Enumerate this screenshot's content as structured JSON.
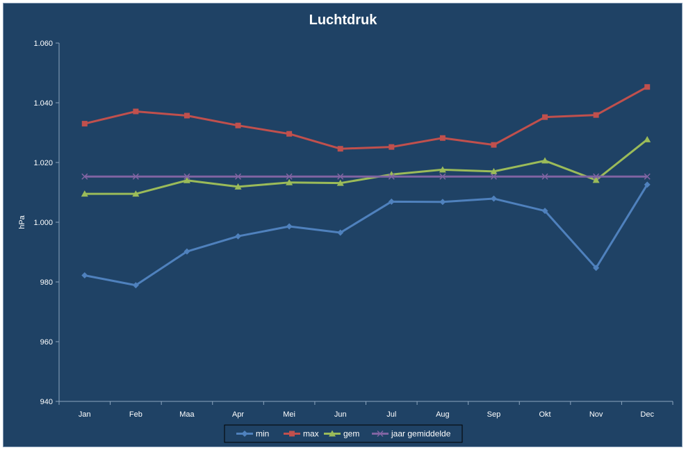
{
  "chart_data": {
    "type": "line",
    "title": "Luchtdruk",
    "xlabel": "",
    "ylabel": "hPa",
    "ylim": [
      940,
      1060
    ],
    "yticks": [
      940,
      960,
      980,
      1000,
      1020,
      1040,
      1060
    ],
    "ytick_labels": [
      "940",
      "960",
      "980",
      "1.000",
      "1.020",
      "1.040",
      "1.060"
    ],
    "grid": false,
    "legend_position": "bottom",
    "categories": [
      "Jan",
      "Feb",
      "Maa",
      "Apr",
      "Mei",
      "Jun",
      "Jul",
      "Aug",
      "Sep",
      "Okt",
      "Nov",
      "Dec"
    ],
    "series": [
      {
        "name": "min",
        "color": "#4f81bd",
        "marker": "diamond",
        "values": [
          982.2,
          978.9,
          990.2,
          995.3,
          998.6,
          996.5,
          1006.9,
          1006.8,
          1007.9,
          1003.8,
          984.7,
          1012.6
        ]
      },
      {
        "name": "max",
        "color": "#c0504d",
        "marker": "square",
        "values": [
          1033.0,
          1037.1,
          1035.7,
          1032.4,
          1029.6,
          1024.6,
          1025.2,
          1028.2,
          1025.9,
          1035.2,
          1035.9,
          1045.3
        ]
      },
      {
        "name": "gem",
        "color": "#9bbb59",
        "marker": "triangle",
        "values": [
          1009.5,
          1009.5,
          1014.0,
          1011.9,
          1013.3,
          1013.1,
          1016.0,
          1017.6,
          1017.0,
          1020.6,
          1014.1,
          1027.7
        ]
      },
      {
        "name": "jaar gemiddelde",
        "color": "#8064a2",
        "marker": "x",
        "values": [
          1015.3,
          1015.3,
          1015.3,
          1015.3,
          1015.3,
          1015.3,
          1015.3,
          1015.3,
          1015.3,
          1015.3,
          1015.3,
          1015.3
        ]
      }
    ]
  }
}
